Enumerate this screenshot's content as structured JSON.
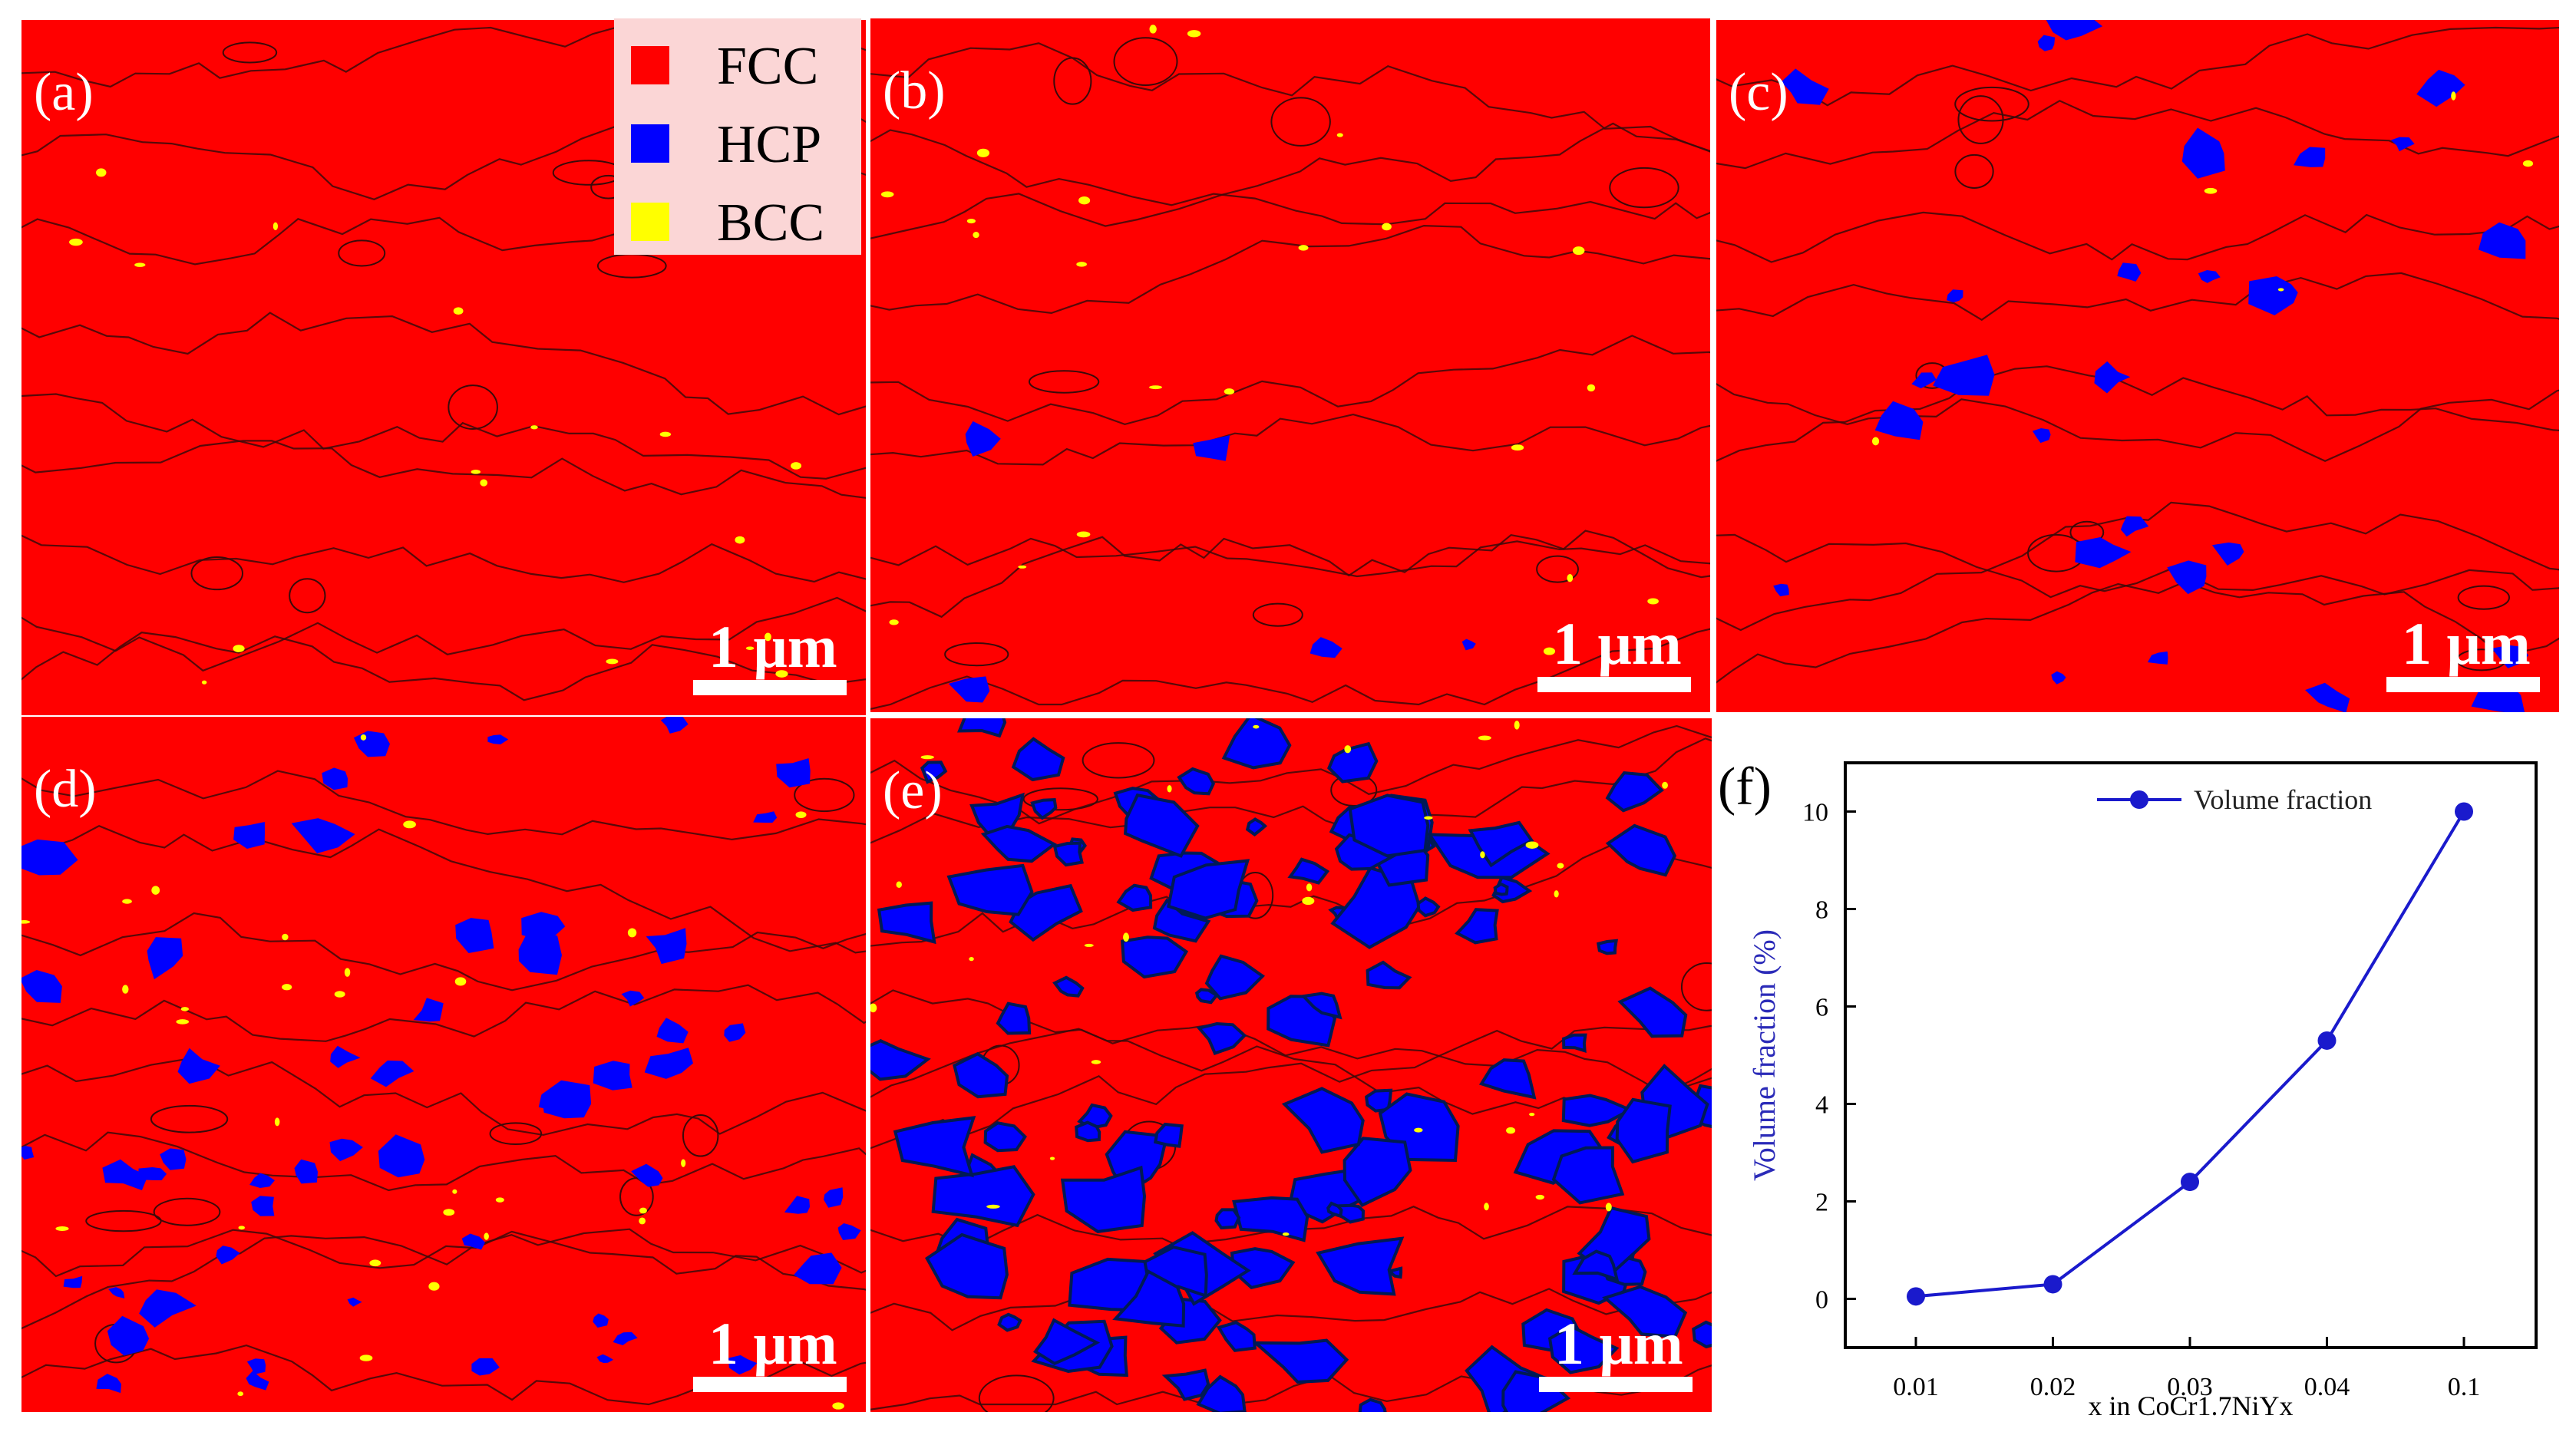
{
  "panels": [
    {
      "label": "(a)",
      "scale": "1 μm",
      "hcp": "none",
      "bcc": "sparse"
    },
    {
      "label": "(b)",
      "scale": "1 μm",
      "hcp": "trace",
      "bcc": "sparse"
    },
    {
      "label": "(c)",
      "scale": "1 μm",
      "hcp": "low",
      "bcc": "trace"
    },
    {
      "label": "(d)",
      "scale": "1 μm",
      "hcp": "medium",
      "bcc": "some"
    },
    {
      "label": "(e)",
      "scale": "1 μm",
      "hcp": "high",
      "bcc": "some"
    }
  ],
  "legend": {
    "items": [
      {
        "label": "FCC",
        "color": "#ff0000"
      },
      {
        "label": "HCP",
        "color": "#0000ff"
      },
      {
        "label": "BCC",
        "color": "#ffff00"
      }
    ]
  },
  "chart_panel_label": "(f)",
  "chart_data": {
    "type": "line",
    "categories": [
      "0.01",
      "0.02",
      "0.03",
      "0.04",
      "0.1"
    ],
    "series": [
      {
        "name": "Volume fraction",
        "values": [
          0.05,
          0.3,
          2.4,
          5.3,
          10.0
        ],
        "color": "#1a1acc"
      }
    ],
    "ylabel": "Volume fraction (%)",
    "xlabel": "x in CoCr1.7NiYx",
    "ylim": [
      -1,
      11
    ],
    "yticks": [
      0,
      2,
      4,
      6,
      8,
      10
    ],
    "legend_position": "top-right"
  }
}
